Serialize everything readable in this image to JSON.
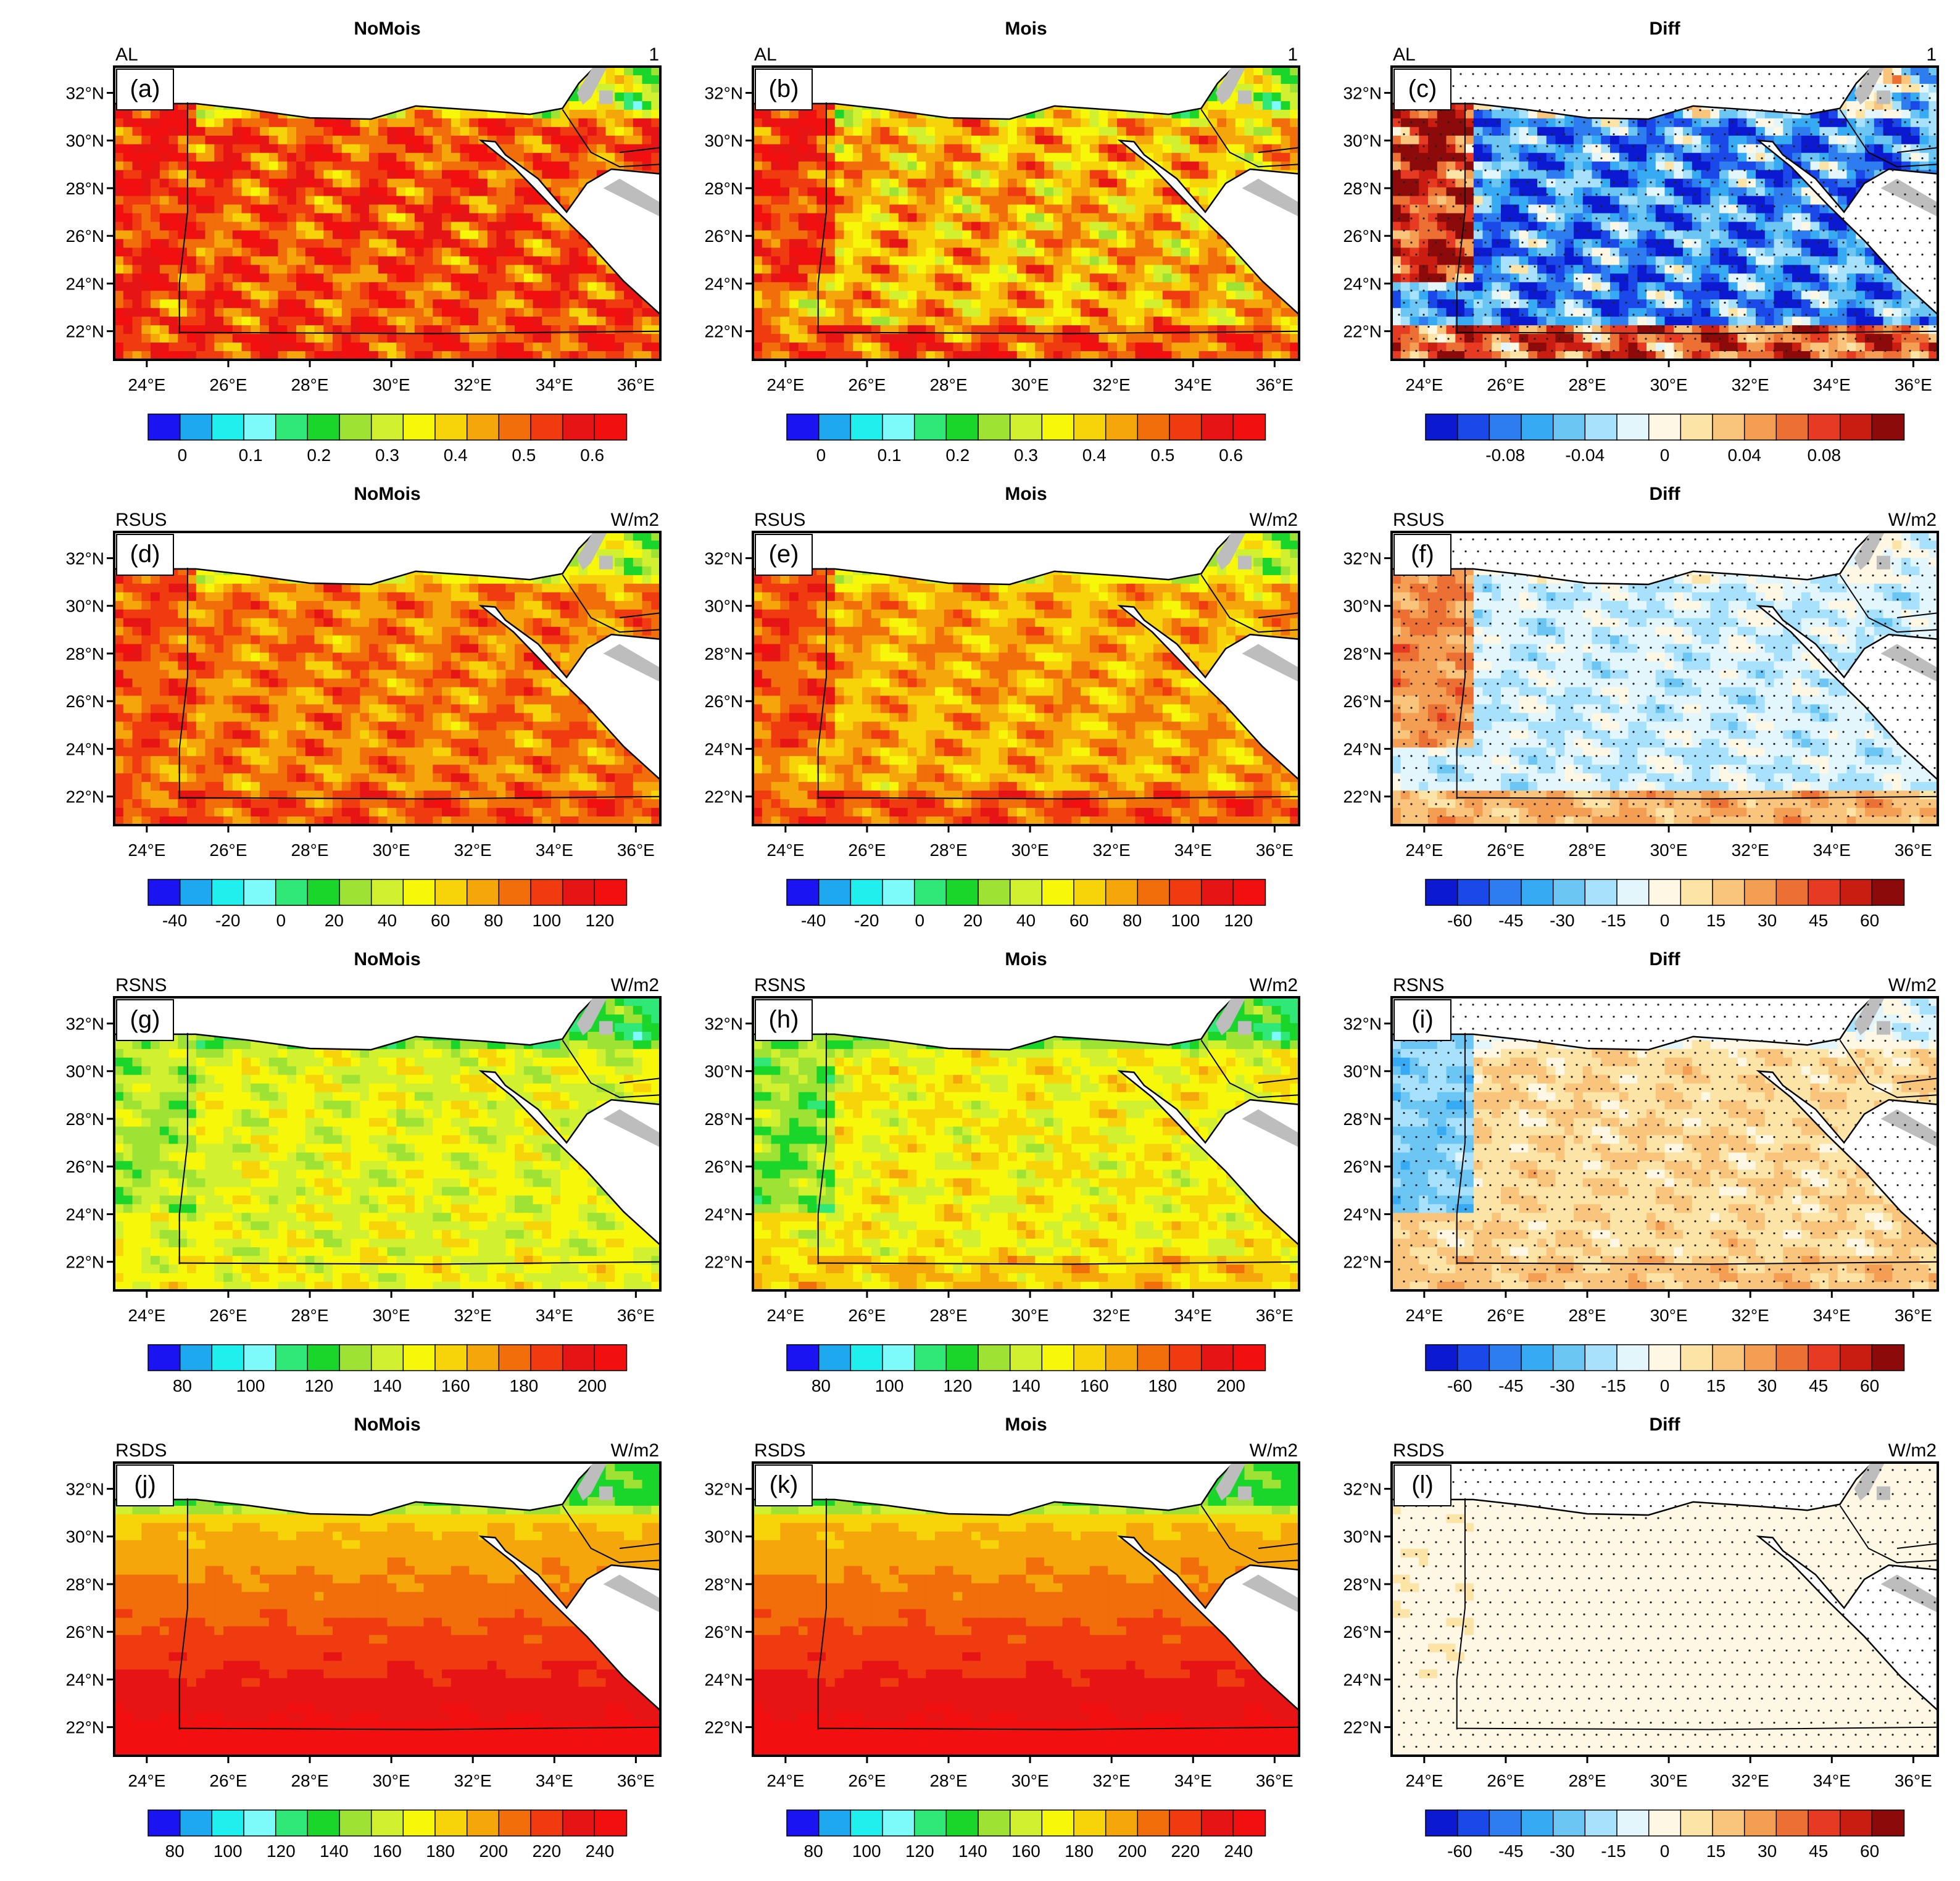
{
  "figure": {
    "columns": [
      "NoMois",
      "Mois",
      "Diff"
    ],
    "lon_ticks": [
      "24°E",
      "26°E",
      "28°E",
      "30°E",
      "32°E",
      "34°E",
      "36°E"
    ],
    "lat_ticks": [
      "32°N",
      "30°N",
      "28°N",
      "26°N",
      "24°N",
      "22°N"
    ]
  },
  "colors": {
    "seq": [
      "#1a13f2",
      "#1ea8f0",
      "#1ff0ee",
      "#7dfbfb",
      "#2fe877",
      "#1ad52a",
      "#9ee234",
      "#d1f02f",
      "#f7f70a",
      "#f7d40a",
      "#f5a60b",
      "#f16e0b",
      "#f03a10",
      "#e61414",
      "#f20f0f"
    ],
    "div": [
      "#0b1ad1",
      "#1b48e8",
      "#2d7df0",
      "#36aaf2",
      "#6cc6f4",
      "#a8e1fb",
      "#e2f6fc",
      "#fdf7e4",
      "#fce3a6",
      "#f9c57c",
      "#f39e53",
      "#ec6f33",
      "#e63b22",
      "#c91d12",
      "#8c0a0a"
    ],
    "land_gray": "#bdbdbd",
    "sea": "#ffffff"
  },
  "chart_data": [
    {
      "id": "a",
      "type": "heatmap",
      "label": "(a)",
      "title": "NoMois",
      "variable": "AL",
      "units": "1",
      "kind": "seq",
      "colorbar_ticks": [
        "0",
        "0.1",
        "0.2",
        "0.3",
        "0.4",
        "0.5",
        "0.6"
      ],
      "colorbar_tick_values": [
        0,
        0.1,
        0.2,
        0.3,
        0.4,
        0.5,
        0.6
      ],
      "colorbar_range": [
        -0.05,
        0.65
      ],
      "field": {
        "base": 0.52,
        "west": 0.56,
        "south": 0.54,
        "coast": 0.3,
        "features": 0.12
      }
    },
    {
      "id": "b",
      "type": "heatmap",
      "label": "(b)",
      "title": "Mois",
      "variable": "AL",
      "units": "1",
      "kind": "seq",
      "colorbar_ticks": [
        "0",
        "0.1",
        "0.2",
        "0.3",
        "0.4",
        "0.5",
        "0.6"
      ],
      "colorbar_tick_values": [
        0,
        0.1,
        0.2,
        0.3,
        0.4,
        0.5,
        0.6
      ],
      "colorbar_range": [
        -0.05,
        0.65
      ],
      "field": {
        "base": 0.42,
        "west": 0.55,
        "south": 0.52,
        "coast": 0.3,
        "features": 0.12
      }
    },
    {
      "id": "c",
      "type": "heatmap",
      "label": "(c)",
      "title": "Diff",
      "variable": "AL",
      "units": "1",
      "kind": "div",
      "colorbar_ticks": [
        "-0.08",
        "-0.04",
        "0",
        "0.04",
        "0.08"
      ],
      "colorbar_tick_values": [
        -0.08,
        -0.04,
        0,
        0.04,
        0.08
      ],
      "colorbar_range": [
        -0.12,
        0.12
      ],
      "stipple": true,
      "field": {
        "base": -0.07,
        "west": 0.09,
        "south": 0.07,
        "coast": -0.02,
        "features": 0.06
      }
    },
    {
      "id": "d",
      "type": "heatmap",
      "label": "(d)",
      "title": "NoMois",
      "variable": "RSUS",
      "units": "W/m2",
      "kind": "seq",
      "colorbar_ticks": [
        "-40",
        "-20",
        "0",
        "20",
        "40",
        "60",
        "80",
        "100",
        "120"
      ],
      "colorbar_tick_values": [
        -40,
        -20,
        0,
        20,
        40,
        60,
        80,
        100,
        120
      ],
      "colorbar_range": [
        -50,
        130
      ],
      "field": {
        "base": 85,
        "west": 95,
        "south": 95,
        "coast": 40,
        "features": 20
      }
    },
    {
      "id": "e",
      "type": "heatmap",
      "label": "(e)",
      "title": "Mois",
      "variable": "RSUS",
      "units": "W/m2",
      "kind": "seq",
      "colorbar_ticks": [
        "-40",
        "-20",
        "0",
        "20",
        "40",
        "60",
        "80",
        "100",
        "120"
      ],
      "colorbar_tick_values": [
        -40,
        -20,
        0,
        20,
        40,
        60,
        80,
        100,
        120
      ],
      "colorbar_range": [
        -50,
        130
      ],
      "field": {
        "base": 75,
        "west": 95,
        "south": 95,
        "coast": 40,
        "features": 20
      }
    },
    {
      "id": "f",
      "type": "heatmap",
      "label": "(f)",
      "title": "Diff",
      "variable": "RSUS",
      "units": "W/m2",
      "kind": "div",
      "colorbar_ticks": [
        "-60",
        "-45",
        "-30",
        "-15",
        "0",
        "15",
        "30",
        "45",
        "60"
      ],
      "colorbar_tick_values": [
        -60,
        -45,
        -30,
        -15,
        0,
        15,
        30,
        45,
        60
      ],
      "colorbar_range": [
        -70,
        70
      ],
      "stipple": true,
      "field": {
        "base": -12,
        "west": 30,
        "south": 22,
        "coast": -5,
        "features": 10
      }
    },
    {
      "id": "g",
      "type": "heatmap",
      "label": "(g)",
      "title": "NoMois",
      "variable": "RSNS",
      "units": "W/m2",
      "kind": "seq",
      "colorbar_ticks": [
        "80",
        "100",
        "120",
        "140",
        "160",
        "180",
        "200"
      ],
      "colorbar_tick_values": [
        80,
        100,
        120,
        140,
        160,
        180,
        200
      ],
      "colorbar_range": [
        70,
        210
      ],
      "field": {
        "base": 145,
        "west": 135,
        "south": 148,
        "coast": 120,
        "features": 12
      }
    },
    {
      "id": "h",
      "type": "heatmap",
      "label": "(h)",
      "title": "Mois",
      "variable": "RSNS",
      "units": "W/m2",
      "kind": "seq",
      "colorbar_ticks": [
        "80",
        "100",
        "120",
        "140",
        "160",
        "180",
        "200"
      ],
      "colorbar_tick_values": [
        80,
        100,
        120,
        140,
        160,
        180,
        200
      ],
      "colorbar_range": [
        70,
        210
      ],
      "field": {
        "base": 150,
        "west": 130,
        "south": 160,
        "coast": 120,
        "features": 12
      }
    },
    {
      "id": "i",
      "type": "heatmap",
      "label": "(i)",
      "title": "Diff",
      "variable": "RSNS",
      "units": "W/m2",
      "kind": "div",
      "colorbar_ticks": [
        "-60",
        "-45",
        "-30",
        "-15",
        "0",
        "15",
        "30",
        "45",
        "60"
      ],
      "colorbar_tick_values": [
        -60,
        -45,
        -30,
        -15,
        0,
        15,
        30,
        45,
        60
      ],
      "colorbar_range": [
        -70,
        70
      ],
      "stipple": true,
      "field": {
        "base": 12,
        "west": -25,
        "south": 18,
        "coast": -8,
        "features": 8
      }
    },
    {
      "id": "j",
      "type": "heatmap",
      "label": "(j)",
      "title": "NoMois",
      "variable": "RSDS",
      "units": "W/m2",
      "kind": "seq",
      "colorbar_ticks": [
        "80",
        "100",
        "120",
        "140",
        "160",
        "180",
        "200",
        "220",
        "240"
      ],
      "colorbar_tick_values": [
        80,
        100,
        120,
        140,
        160,
        180,
        200,
        220,
        240
      ],
      "colorbar_range": [
        70,
        250
      ],
      "field": {
        "base": 210,
        "gradient": 30,
        "west": 0,
        "south": 245,
        "coast": 140,
        "features": 4
      }
    },
    {
      "id": "k",
      "type": "heatmap",
      "label": "(k)",
      "title": "Mois",
      "variable": "RSDS",
      "units": "W/m2",
      "kind": "seq",
      "colorbar_ticks": [
        "80",
        "100",
        "120",
        "140",
        "160",
        "180",
        "200",
        "220",
        "240"
      ],
      "colorbar_tick_values": [
        80,
        100,
        120,
        140,
        160,
        180,
        200,
        220,
        240
      ],
      "colorbar_range": [
        70,
        250
      ],
      "field": {
        "base": 210,
        "gradient": 30,
        "west": 0,
        "south": 245,
        "coast": 140,
        "features": 4
      }
    },
    {
      "id": "l",
      "type": "heatmap",
      "label": "(l)",
      "title": "Diff",
      "variable": "RSDS",
      "units": "W/m2",
      "kind": "div",
      "colorbar_ticks": [
        "-60",
        "-45",
        "-30",
        "-15",
        "0",
        "15",
        "30",
        "45",
        "60"
      ],
      "colorbar_tick_values": [
        -60,
        -45,
        -30,
        -15,
        0,
        15,
        30,
        45,
        60
      ],
      "colorbar_range": [
        -70,
        70
      ],
      "stipple": true,
      "field": {
        "base": -1,
        "west": 4,
        "south": 1,
        "coast": -2,
        "features": 1
      }
    }
  ]
}
